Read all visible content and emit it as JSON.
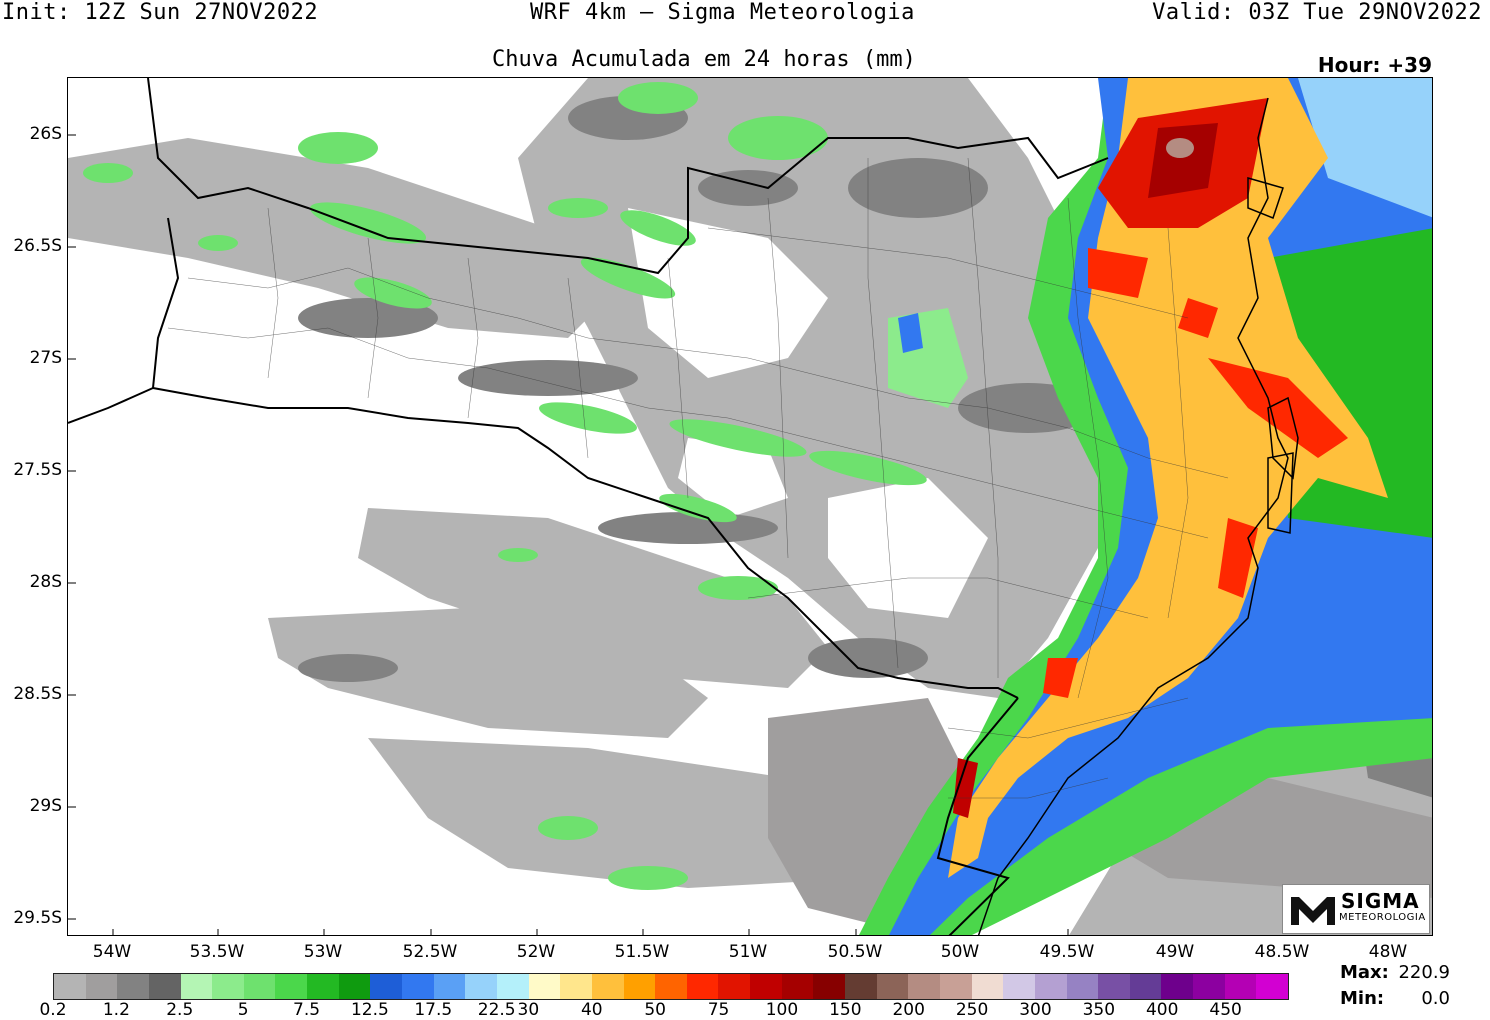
{
  "header": {
    "init": "Init: 12Z Sun 27NOV2022",
    "model": "WRF 4km — Sigma Meteorologia",
    "valid": "Valid: 03Z Tue 29NOV2022",
    "subtitle": "Chuva Acumulada em 24 horas (mm)",
    "hour": "Hour: +39"
  },
  "map": {
    "lat_labels": [
      "26S",
      "26.5S",
      "27S",
      "27.5S",
      "28S",
      "28.5S",
      "29S",
      "29.5S"
    ],
    "lon_labels": [
      "54W",
      "53.5W",
      "53W",
      "52.5W",
      "52W",
      "51.5W",
      "51W",
      "50.5W",
      "50W",
      "49.5W",
      "49W",
      "48.5W",
      "48W"
    ]
  },
  "colorbar": {
    "colors": [
      "#b4b4b4",
      "#a09e9e",
      "#828282",
      "#646464",
      "#b4f5b4",
      "#8ceb8c",
      "#6ee16e",
      "#4bd74b",
      "#23b923",
      "#0f9b0f",
      "#1e5ed7",
      "#3278f0",
      "#5aa0f5",
      "#96d2fa",
      "#b4f0fa",
      "#fffac8",
      "#ffe68c",
      "#ffc03c",
      "#ffa000",
      "#ff6400",
      "#ff2800",
      "#e11400",
      "#c00000",
      "#a50000",
      "#870000",
      "#643c32",
      "#8c6458",
      "#b48c82",
      "#c8a096",
      "#f0dcd2",
      "#d2c8e6",
      "#b4a0d2",
      "#9682c3",
      "#7850a5",
      "#643c96",
      "#6e008c",
      "#8c00a0",
      "#b400b4",
      "#d200d2"
    ],
    "labels": [
      "0.2",
      "1.2",
      "2.5",
      "5",
      "7.5",
      "12.5",
      "17.5",
      "22.5",
      "30",
      "40",
      "50",
      "75",
      "100",
      "150",
      "200",
      "250",
      "300",
      "350",
      "400",
      "450"
    ]
  },
  "stats": {
    "max_label": "Max:",
    "max_value": "220.9",
    "min_label": "Min:",
    "min_value": "0.0"
  },
  "logo": {
    "name": "SIGMA",
    "sub": "METEOROLOGIA"
  }
}
